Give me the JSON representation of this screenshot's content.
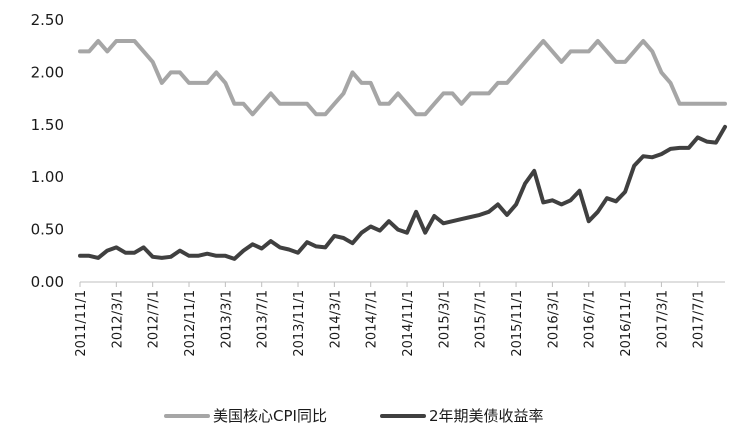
{
  "chart_data": {
    "type": "line",
    "title": "",
    "xlabel": "",
    "ylabel": "",
    "ylim": [
      0,
      2.5
    ],
    "yticks": [
      "0.00",
      "0.50",
      "1.00",
      "1.50",
      "2.00",
      "2.50"
    ],
    "grid": false,
    "legend_position": "bottom",
    "x": [
      "2011/11",
      "2011/12",
      "2012/1",
      "2012/2",
      "2012/3",
      "2012/4",
      "2012/5",
      "2012/6",
      "2012/7",
      "2012/8",
      "2012/9",
      "2012/10",
      "2012/11",
      "2012/12",
      "2013/1",
      "2013/2",
      "2013/3",
      "2013/4",
      "2013/5",
      "2013/6",
      "2013/7",
      "2013/8",
      "2013/9",
      "2013/10",
      "2013/11",
      "2013/12",
      "2014/1",
      "2014/2",
      "2014/3",
      "2014/4",
      "2014/5",
      "2014/6",
      "2014/7",
      "2014/8",
      "2014/9",
      "2014/10",
      "2014/11",
      "2014/12",
      "2015/1",
      "2015/2",
      "2015/3",
      "2015/4",
      "2015/5",
      "2015/6",
      "2015/7",
      "2015/8",
      "2015/9",
      "2015/10",
      "2015/11",
      "2015/12",
      "2016/1",
      "2016/2",
      "2016/3",
      "2016/4",
      "2016/5",
      "2016/6",
      "2016/7",
      "2016/8",
      "2016/9",
      "2016/10",
      "2016/11",
      "2016/12",
      "2017/1",
      "2017/2",
      "2017/3",
      "2017/4",
      "2017/5",
      "2017/6",
      "2017/7",
      "2017/8",
      "2017/9",
      "2017/10"
    ],
    "xtick_labels": [
      "2011/11/1",
      "2012/3/1",
      "2012/7/1",
      "2012/11/1",
      "2013/3/1",
      "2013/7/1",
      "2013/11/1",
      "2014/3/1",
      "2014/7/1",
      "2014/11/1",
      "2015/3/1",
      "2015/7/1",
      "2015/11/1",
      "2016/3/1",
      "2016/7/1",
      "2016/11/1",
      "2017/3/1",
      "2017/7/1"
    ],
    "series": [
      {
        "name": "美国核心CPI同比",
        "color": "#a6a6a6",
        "values": [
          2.2,
          2.2,
          2.3,
          2.2,
          2.3,
          2.3,
          2.3,
          2.2,
          2.1,
          1.9,
          2.0,
          2.0,
          1.9,
          1.9,
          1.9,
          2.0,
          1.9,
          1.7,
          1.7,
          1.6,
          1.7,
          1.8,
          1.7,
          1.7,
          1.7,
          1.7,
          1.6,
          1.6,
          1.7,
          1.8,
          2.0,
          1.9,
          1.9,
          1.7,
          1.7,
          1.8,
          1.7,
          1.6,
          1.6,
          1.7,
          1.8,
          1.8,
          1.7,
          1.8,
          1.8,
          1.8,
          1.9,
          1.9,
          2.0,
          2.1,
          2.2,
          2.3,
          2.2,
          2.1,
          2.2,
          2.2,
          2.2,
          2.3,
          2.2,
          2.1,
          2.1,
          2.2,
          2.3,
          2.2,
          2.0,
          1.9,
          1.7,
          1.7,
          1.7,
          1.7,
          1.7,
          1.7
        ]
      },
      {
        "name": "2年期美债收益率",
        "color": "#404040",
        "values": [
          0.25,
          0.25,
          0.23,
          0.3,
          0.33,
          0.28,
          0.28,
          0.33,
          0.24,
          0.23,
          0.24,
          0.3,
          0.25,
          0.25,
          0.27,
          0.25,
          0.25,
          0.22,
          0.3,
          0.36,
          0.32,
          0.39,
          0.33,
          0.31,
          0.28,
          0.38,
          0.34,
          0.33,
          0.44,
          0.42,
          0.37,
          0.47,
          0.53,
          0.49,
          0.58,
          0.5,
          0.47,
          0.67,
          0.47,
          0.63,
          0.56,
          0.58,
          0.6,
          0.62,
          0.64,
          0.67,
          0.74,
          0.64,
          0.74,
          0.94,
          1.06,
          0.76,
          0.78,
          0.74,
          0.78,
          0.87,
          0.58,
          0.67,
          0.8,
          0.77,
          0.86,
          1.11,
          1.2,
          1.19,
          1.22,
          1.27,
          1.28,
          1.28,
          1.38,
          1.34,
          1.33,
          1.48
        ]
      }
    ]
  }
}
